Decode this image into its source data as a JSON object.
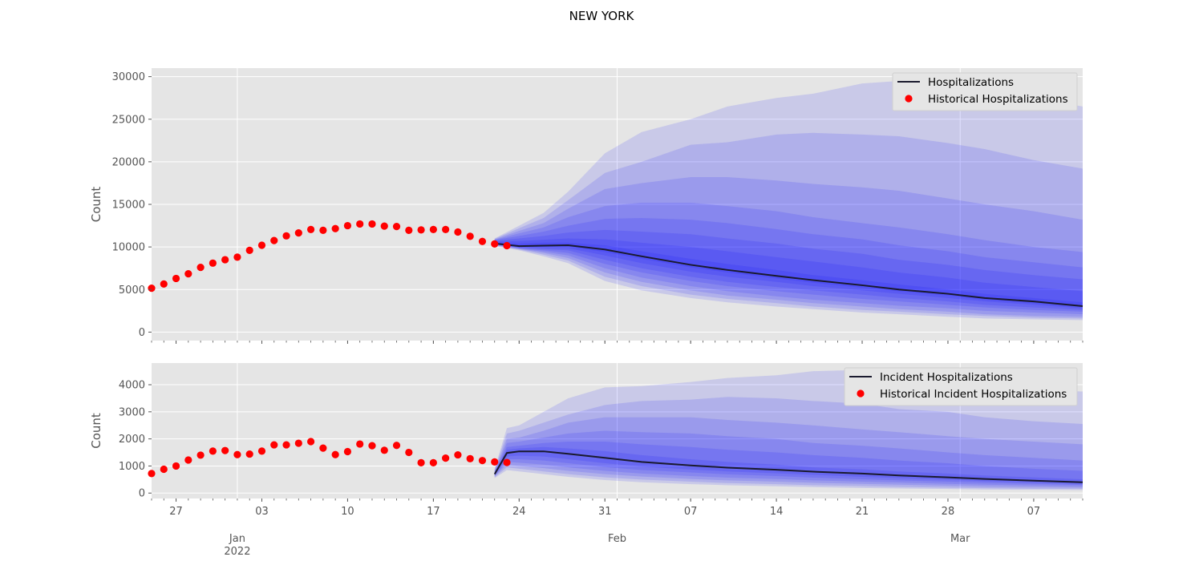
{
  "figure": {
    "title": "NEW YORK"
  },
  "colors": {
    "panel_bg": "#e5e5e5",
    "grid": "#ffffff",
    "band": "#0000ff",
    "median": "#1a1a2e",
    "historical": "#ff0000"
  },
  "chart_data": [
    {
      "type": "line",
      "name": "hospitalizations",
      "ylabel": "Count",
      "xlim": [
        "2021-12-25",
        "2022-03-11"
      ],
      "ylim": [
        -1000,
        31000
      ],
      "y_ticks": [
        0,
        5000,
        10000,
        15000,
        20000,
        25000,
        30000
      ],
      "grid": true,
      "legend_position": "top-right",
      "legend": [
        "Hospitalizations",
        "Historical Hospitalizations"
      ],
      "historical": {
        "x": [
          "2021-12-25",
          "2021-12-26",
          "2021-12-27",
          "2021-12-28",
          "2021-12-29",
          "2021-12-30",
          "2021-12-31",
          "2022-01-01",
          "2022-01-02",
          "2022-01-03",
          "2022-01-04",
          "2022-01-05",
          "2022-01-06",
          "2022-01-07",
          "2022-01-08",
          "2022-01-09",
          "2022-01-10",
          "2022-01-11",
          "2022-01-12",
          "2022-01-13",
          "2022-01-14",
          "2022-01-15",
          "2022-01-16",
          "2022-01-17",
          "2022-01-18",
          "2022-01-19",
          "2022-01-20",
          "2022-01-21",
          "2022-01-22",
          "2022-01-23"
        ],
        "y": [
          5150,
          5650,
          6300,
          6850,
          7600,
          8100,
          8500,
          8800,
          9600,
          10200,
          10750,
          11300,
          11650,
          12050,
          11950,
          12150,
          12500,
          12700,
          12700,
          12450,
          12400,
          11950,
          12000,
          12050,
          12050,
          11750,
          11250,
          10650,
          10350,
          10150
        ]
      },
      "forecast": {
        "x": [
          "2022-01-22",
          "2022-01-24",
          "2022-01-26",
          "2022-01-28",
          "2022-01-31",
          "2022-02-03",
          "2022-02-07",
          "2022-02-10",
          "2022-02-14",
          "2022-02-17",
          "2022-02-21",
          "2022-02-24",
          "2022-02-28",
          "2022-03-03",
          "2022-03-07",
          "2022-03-11"
        ],
        "median": [
          10400,
          10100,
          10150,
          10200,
          9700,
          8900,
          7900,
          7300,
          6600,
          6100,
          5500,
          5000,
          4500,
          4000,
          3600,
          3050
        ],
        "bands": [
          {
            "lower": [
              10100,
              9600,
              8900,
              8100,
              6000,
              4900,
              4000,
              3500,
              3000,
              2700,
              2300,
              2100,
              1800,
              1600,
              1500,
              1400
            ],
            "upper": [
              11000,
              12500,
              14000,
              16500,
              21000,
              23500,
              25000,
              26500,
              27500,
              28000,
              29200,
              29500,
              29500,
              28500,
              27500,
              26500
            ]
          },
          {
            "lower": [
              10150,
              9700,
              9100,
              8400,
              6500,
              5400,
              4400,
              3900,
              3400,
              3000,
              2600,
              2400,
              2100,
              1900,
              1700,
              1600
            ],
            "upper": [
              10950,
              12200,
              13400,
              15500,
              18700,
              20000,
              22000,
              22300,
              23200,
              23400,
              23200,
              23000,
              22200,
              21500,
              20200,
              19200
            ]
          },
          {
            "lower": [
              10200,
              9750,
              9300,
              8700,
              7000,
              5900,
              4900,
              4300,
              3800,
              3400,
              3000,
              2700,
              2400,
              2100,
              1900,
              1800
            ],
            "upper": [
              10900,
              11900,
              12800,
              14500,
              16800,
              17500,
              18200,
              18200,
              17800,
              17400,
              17000,
              16600,
              15700,
              15000,
              14200,
              13200
            ]
          },
          {
            "lower": [
              10250,
              9800,
              9450,
              9000,
              7500,
              6400,
              5400,
              4800,
              4200,
              3800,
              3400,
              3100,
              2800,
              2500,
              2300,
              2100
            ],
            "upper": [
              10850,
              11600,
              12300,
              13500,
              14800,
              15200,
              15200,
              14800,
              14200,
              13500,
              12800,
              12300,
              11500,
              10800,
              10000,
              9400
            ]
          },
          {
            "lower": [
              10300,
              9850,
              9600,
              9300,
              8000,
              7000,
              6000,
              5400,
              4800,
              4400,
              3900,
              3600,
              3200,
              2900,
              2600,
              2400
            ],
            "upper": [
              10800,
              11300,
              11800,
              12500,
              13300,
              13400,
              13200,
              12800,
              12100,
              11500,
              10900,
              10200,
              9500,
              8800,
              8200,
              7600
            ]
          },
          {
            "lower": [
              10330,
              9900,
              9750,
              9600,
              8500,
              7500,
              6500,
              5900,
              5300,
              4900,
              4400,
              4000,
              3600,
              3200,
              2900,
              2600
            ],
            "upper": [
              10700,
              11000,
              11300,
              11700,
              12000,
              11800,
              11500,
              11000,
              10400,
              9800,
              9200,
              8500,
              7900,
              7300,
              6700,
              6200
            ]
          },
          {
            "lower": [
              10360,
              9950,
              9900,
              9850,
              9000,
              8100,
              7100,
              6500,
              5900,
              5400,
              4900,
              4500,
              4000,
              3600,
              3200,
              2800
            ],
            "upper": [
              10600,
              10700,
              10850,
              11000,
              10900,
              10500,
              10000,
              9500,
              8800,
              8300,
              7600,
              7000,
              6400,
              5800,
              5300,
              4800
            ]
          },
          {
            "lower": [
              10380,
              10000,
              10000,
              10050,
              9400,
              8600,
              7600,
              7000,
              6300,
              5800,
              5200,
              4800,
              4300,
              3800,
              3400,
              2950
            ],
            "upper": [
              10500,
              10400,
              10500,
              10500,
              10200,
              9500,
              8600,
              8000,
              7300,
              6700,
              6100,
              5600,
              5000,
              4500,
              4000,
              3500
            ]
          }
        ]
      }
    },
    {
      "type": "line",
      "name": "incident_hospitalizations",
      "ylabel": "Count",
      "xlim": [
        "2021-12-25",
        "2022-03-11"
      ],
      "ylim": [
        -200,
        4800
      ],
      "y_ticks": [
        0,
        1000,
        2000,
        3000,
        4000
      ],
      "x_ticks": [
        {
          "date": "2021-12-27",
          "label": "27"
        },
        {
          "date": "2022-01-03",
          "label": "03"
        },
        {
          "date": "2022-01-10",
          "label": "10"
        },
        {
          "date": "2022-01-17",
          "label": "17"
        },
        {
          "date": "2022-01-24",
          "label": "24"
        },
        {
          "date": "2022-01-31",
          "label": "31"
        },
        {
          "date": "2022-02-07",
          "label": "07"
        },
        {
          "date": "2022-02-14",
          "label": "14"
        },
        {
          "date": "2022-02-21",
          "label": "21"
        },
        {
          "date": "2022-02-28",
          "label": "28"
        },
        {
          "date": "2022-03-07",
          "label": "07"
        }
      ],
      "x_major_ticks": [
        {
          "date": "2022-01-01",
          "label": "Jan",
          "sublabel": "2022"
        },
        {
          "date": "2022-02-01",
          "label": "Feb",
          "sublabel": ""
        },
        {
          "date": "2022-03-01",
          "label": "Mar",
          "sublabel": ""
        }
      ],
      "grid": true,
      "legend_position": "top-right",
      "legend": [
        "Incident Hospitalizations",
        "Historical Incident Hospitalizations"
      ],
      "historical": {
        "x": [
          "2021-12-25",
          "2021-12-26",
          "2021-12-27",
          "2021-12-28",
          "2021-12-29",
          "2021-12-30",
          "2021-12-31",
          "2022-01-01",
          "2022-01-02",
          "2022-01-03",
          "2022-01-04",
          "2022-01-05",
          "2022-01-06",
          "2022-01-07",
          "2022-01-08",
          "2022-01-09",
          "2022-01-10",
          "2022-01-11",
          "2022-01-12",
          "2022-01-13",
          "2022-01-14",
          "2022-01-15",
          "2022-01-16",
          "2022-01-17",
          "2022-01-18",
          "2022-01-19",
          "2022-01-20",
          "2022-01-21",
          "2022-01-22",
          "2022-01-23"
        ],
        "y": [
          720,
          880,
          1000,
          1220,
          1400,
          1550,
          1570,
          1420,
          1440,
          1550,
          1780,
          1780,
          1840,
          1900,
          1660,
          1420,
          1530,
          1810,
          1750,
          1580,
          1760,
          1500,
          1120,
          1120,
          1290,
          1410,
          1270,
          1200,
          1150,
          1130
        ]
      },
      "forecast": {
        "x": [
          "2022-01-22",
          "2022-01-23",
          "2022-01-24",
          "2022-01-26",
          "2022-01-28",
          "2022-01-31",
          "2022-02-03",
          "2022-02-07",
          "2022-02-10",
          "2022-02-14",
          "2022-02-17",
          "2022-02-21",
          "2022-02-24",
          "2022-02-28",
          "2022-03-03",
          "2022-03-07",
          "2022-03-11"
        ],
        "median": [
          700,
          1480,
          1540,
          1540,
          1450,
          1300,
          1150,
          1020,
          940,
          860,
          790,
          720,
          650,
          580,
          520,
          460,
          400
        ],
        "bands": [
          {
            "lower": [
              550,
              850,
              800,
              700,
              600,
              480,
              400,
              330,
              290,
              250,
              220,
              190,
              170,
              150,
              130,
              120,
              110
            ],
            "upper": [
              900,
              2400,
              2500,
              3000,
              3500,
              3900,
              3950,
              4100,
              4250,
              4350,
              4500,
              4550,
              4400,
              4300,
              4000,
              3800,
              3750
            ]
          },
          {
            "lower": [
              580,
              950,
              900,
              800,
              700,
              580,
              500,
              420,
              370,
              330,
              290,
              260,
              230,
              200,
              180,
              160,
              150
            ],
            "upper": [
              860,
              2200,
              2300,
              2600,
              2900,
              3250,
              3400,
              3450,
              3550,
              3500,
              3400,
              3300,
              3100,
              3000,
              2800,
              2650,
              2550
            ]
          },
          {
            "lower": [
              610,
              1050,
              1000,
              920,
              820,
              700,
              610,
              520,
              470,
              420,
              380,
              340,
              310,
              270,
              240,
              220,
              200
            ],
            "upper": [
              820,
              2000,
              2050,
              2300,
              2600,
              2800,
              2800,
              2800,
              2700,
              2600,
              2500,
              2350,
              2250,
              2100,
              2000,
              1900,
              1800
            ]
          },
          {
            "lower": [
              630,
              1150,
              1120,
              1050,
              950,
              820,
              720,
              630,
              570,
              520,
              470,
              420,
              390,
              340,
              310,
              280,
              250
            ],
            "upper": [
              790,
              1850,
              1900,
              2050,
              2200,
              2300,
              2250,
              2200,
              2100,
              2000,
              1850,
              1750,
              1650,
              1500,
              1400,
              1300,
              1200
            ]
          },
          {
            "lower": [
              650,
              1250,
              1250,
              1200,
              1100,
              960,
              850,
              760,
              690,
              630,
              570,
              510,
              470,
              420,
              380,
              340,
              300
            ],
            "upper": [
              760,
              1700,
              1750,
              1850,
              1900,
              1900,
              1800,
              1700,
              1600,
              1500,
              1400,
              1300,
              1200,
              1100,
              1000,
              900,
              820
            ]
          },
          {
            "lower": [
              670,
              1350,
              1380,
              1350,
              1250,
              1100,
              980,
              870,
              800,
              730,
              670,
              600,
              550,
              490,
              440,
              390,
              340
            ],
            "upper": [
              730,
              1600,
              1650,
              1700,
              1650,
              1550,
              1400,
              1250,
              1150,
              1050,
              950,
              880,
              800,
              720,
              650,
              580,
              510
            ]
          }
        ]
      }
    }
  ]
}
